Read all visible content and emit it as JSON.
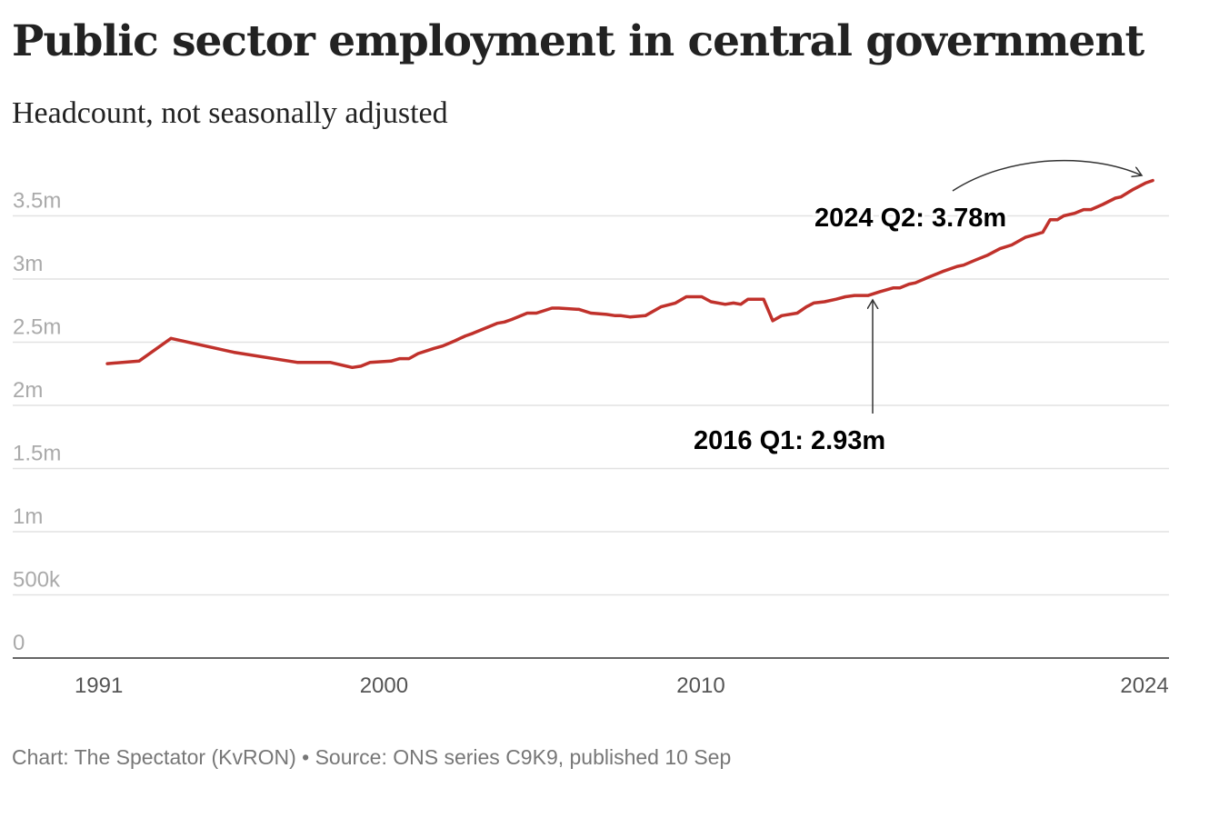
{
  "chart_data": {
    "type": "line",
    "title": "Public sector employment in central government",
    "subtitle": "Headcount, not seasonally adjusted",
    "xlabel": "",
    "ylabel": "",
    "ylim": [
      0,
      3500000
    ],
    "y_ticks": [
      {
        "value": 0,
        "label": "0"
      },
      {
        "value": 500000,
        "label": "500k"
      },
      {
        "value": 1000000,
        "label": "1m"
      },
      {
        "value": 1500000,
        "label": "1.5m"
      },
      {
        "value": 2000000,
        "label": "2m"
      },
      {
        "value": 2500000,
        "label": "2.5m"
      },
      {
        "value": 3000000,
        "label": "3m"
      },
      {
        "value": 3500000,
        "label": "3.5m"
      }
    ],
    "x_ticks": [
      {
        "value": 1991,
        "label": "1991"
      },
      {
        "value": 2000,
        "label": "2000"
      },
      {
        "value": 2010,
        "label": "2010"
      },
      {
        "value": 2024,
        "label": "2024"
      }
    ],
    "grid": true,
    "series": [
      {
        "name": "Central government employment",
        "color": "#c0312b",
        "points": [
          [
            1991.27,
            2.33
          ],
          [
            1992.27,
            2.35
          ],
          [
            1993.28,
            2.53
          ],
          [
            1995.26,
            2.42
          ],
          [
            1997.26,
            2.34
          ],
          [
            1998.3,
            2.34
          ],
          [
            1999.0,
            2.3
          ],
          [
            1999.27,
            2.31
          ],
          [
            1999.56,
            2.34
          ],
          [
            2000.22,
            2.35
          ],
          [
            2000.5,
            2.37
          ],
          [
            2000.79,
            2.37
          ],
          [
            2001.08,
            2.41
          ],
          [
            2001.57,
            2.45
          ],
          [
            2001.85,
            2.47
          ],
          [
            2002.23,
            2.51
          ],
          [
            2002.57,
            2.55
          ],
          [
            2002.8,
            2.57
          ],
          [
            2003.09,
            2.6
          ],
          [
            2003.57,
            2.65
          ],
          [
            2003.8,
            2.66
          ],
          [
            2004.03,
            2.68
          ],
          [
            2004.52,
            2.73
          ],
          [
            2004.81,
            2.73
          ],
          [
            2005.3,
            2.77
          ],
          [
            2005.52,
            2.77
          ],
          [
            2006.16,
            2.76
          ],
          [
            2006.53,
            2.73
          ],
          [
            2007.02,
            2.72
          ],
          [
            2007.3,
            2.71
          ],
          [
            2007.48,
            2.71
          ],
          [
            2007.76,
            2.7
          ],
          [
            2008.25,
            2.71
          ],
          [
            2008.74,
            2.78
          ],
          [
            2009.2,
            2.81
          ],
          [
            2009.54,
            2.86
          ],
          [
            2010.03,
            2.86
          ],
          [
            2010.32,
            2.82
          ],
          [
            2010.77,
            2.8
          ],
          [
            2011.03,
            2.81
          ],
          [
            2011.26,
            2.8
          ],
          [
            2011.49,
            2.84
          ],
          [
            2011.98,
            2.84
          ],
          [
            2012.27,
            2.67
          ],
          [
            2012.55,
            2.71
          ],
          [
            2013.04,
            2.73
          ],
          [
            2013.33,
            2.78
          ],
          [
            2013.56,
            2.81
          ],
          [
            2013.9,
            2.82
          ],
          [
            2014.27,
            2.84
          ],
          [
            2014.56,
            2.86
          ],
          [
            2014.85,
            2.87
          ],
          [
            2015.28,
            2.87
          ],
          [
            2015.65,
            2.9
          ],
          [
            2016.08,
            2.93
          ],
          [
            2016.28,
            2.93
          ],
          [
            2016.57,
            2.96
          ],
          [
            2016.77,
            2.97
          ],
          [
            2017.14,
            3.01
          ],
          [
            2017.63,
            3.06
          ],
          [
            2018.09,
            3.1
          ],
          [
            2018.29,
            3.11
          ],
          [
            2018.66,
            3.15
          ],
          [
            2019.06,
            3.19
          ],
          [
            2019.44,
            3.24
          ],
          [
            2019.81,
            3.27
          ],
          [
            2020.24,
            3.33
          ],
          [
            2020.53,
            3.35
          ],
          [
            2020.79,
            3.37
          ],
          [
            2021.02,
            3.47
          ],
          [
            2021.25,
            3.47
          ],
          [
            2021.45,
            3.5
          ],
          [
            2021.79,
            3.52
          ],
          [
            2022.08,
            3.55
          ],
          [
            2022.31,
            3.55
          ],
          [
            2022.68,
            3.59
          ],
          [
            2023.08,
            3.64
          ],
          [
            2023.25,
            3.65
          ],
          [
            2023.65,
            3.71
          ],
          [
            2024.03,
            3.76
          ],
          [
            2024.26,
            3.78
          ]
        ]
      }
    ],
    "annotations": [
      {
        "label": "2024 Q2: 3.78m"
      },
      {
        "label": "2016 Q1: 2.93m"
      }
    ]
  },
  "footer": "Chart: The Spectator (KvRON) • Source: ONS series C9K9, published 10 Sep"
}
